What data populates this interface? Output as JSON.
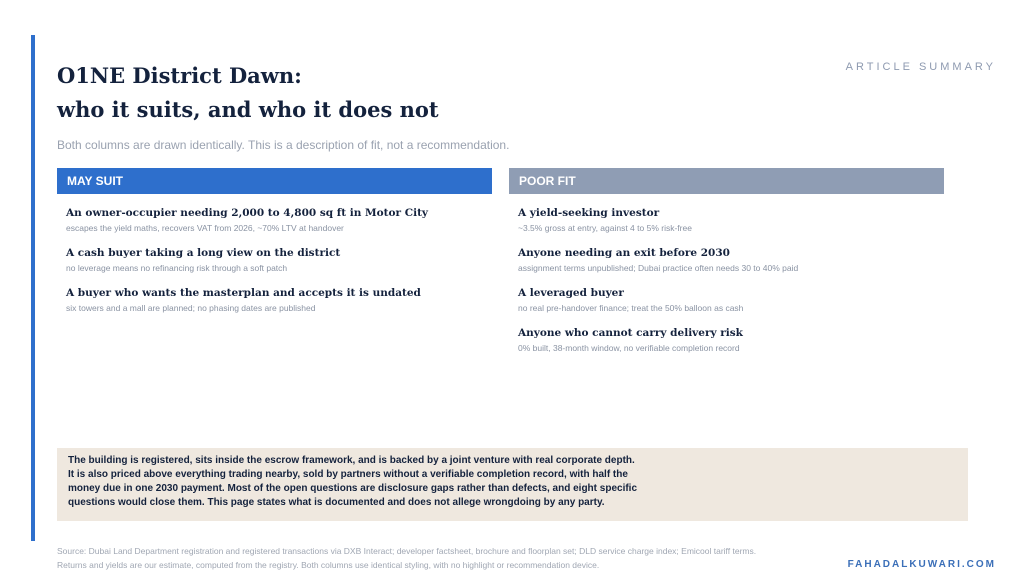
{
  "header": {
    "kicker": "ARTICLE SUMMARY",
    "title_lines": [
      "O1NE District Dawn:",
      "who it suits, and who it does not"
    ],
    "subtitle": "Both columns are drawn identically. This is a description of fit, not a recommendation."
  },
  "columns": [
    {
      "heading": "MAY SUIT",
      "items": [
        {
          "title": "An owner-occupier needing 2,000 to 4,800 sq ft in Motor City",
          "detail": "escapes the yield maths, recovers VAT from 2026, ~70% LTV at handover"
        },
        {
          "title": "A cash buyer taking a long view on the district",
          "detail": "no leverage means no refinancing risk through a soft patch"
        },
        {
          "title": "A buyer who wants the masterplan and accepts it is undated",
          "detail": "six towers and a mall are planned; no phasing dates are published"
        }
      ]
    },
    {
      "heading": "POOR FIT",
      "items": [
        {
          "title": "A yield-seeking investor",
          "detail": "~3.5% gross at entry, against 4 to 5% risk-free"
        },
        {
          "title": "Anyone needing an exit before 2030",
          "detail": "assignment terms unpublished; Dubai practice often needs 30 to 40% paid"
        },
        {
          "title": "A leveraged buyer",
          "detail": "no real pre-handover finance; treat the 50% balloon as cash"
        },
        {
          "title": "Anyone who cannot carry delivery risk",
          "detail": "0% built, 38-month window, no verifiable completion record"
        }
      ]
    }
  ],
  "summary_lines": [
    "The building is registered, sits inside the escrow framework, and is backed by a joint venture with real corporate depth.",
    "It is also priced above everything trading nearby, sold by partners without a verifiable completion record, with half the",
    "money due in one 2030 payment. Most of the open questions are disclosure gaps rather than defects, and eight specific",
    "questions would close them. This page states what is documented and does not allege wrongdoing by any party."
  ],
  "source_lines": [
    "Source: Dubai Land Department registration and registered transactions via DXB Interact; developer factsheet, brochure and floorplan set; DLD service charge index; Emicool tariff terms.",
    "Returns and yields are our estimate, computed from the registry. Both columns use identical styling, with no highlight or recommendation device."
  ],
  "footer": "FAHADALKUWARI.COM"
}
